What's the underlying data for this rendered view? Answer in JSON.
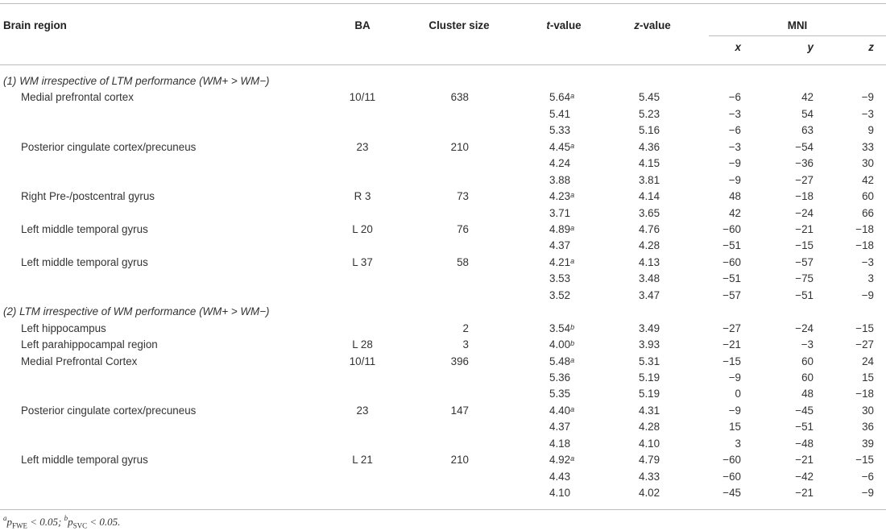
{
  "header": {
    "brain_region": "Brain region",
    "ba": "BA",
    "cluster_size": "Cluster size",
    "t_italic": "t",
    "t_rest": "-value",
    "z_italic": "z",
    "z_rest": "-value",
    "mni": "MNI",
    "x": "x",
    "y": "y",
    "z": "z"
  },
  "sections": [
    {
      "title": "(1) WM irrespective of LTM performance (WM+ > WM−)",
      "rows": [
        {
          "region": "Medial prefrontal cortex",
          "ba": "10/11",
          "cluster": "638",
          "t": "5.64",
          "sup": "a",
          "zv": "5.45",
          "x": "−6",
          "y": "42",
          "z": "−9"
        },
        {
          "region": "",
          "ba": "",
          "cluster": "",
          "t": "5.41",
          "sup": "",
          "zv": "5.23",
          "x": "−3",
          "y": "54",
          "z": "−3"
        },
        {
          "region": "",
          "ba": "",
          "cluster": "",
          "t": "5.33",
          "sup": "",
          "zv": "5.16",
          "x": "−6",
          "y": "63",
          "z": "9"
        },
        {
          "region": "Posterior cingulate cortex/precuneus",
          "ba": "23",
          "cluster": "210",
          "t": "4.45",
          "sup": "a",
          "zv": "4.36",
          "x": "−3",
          "y": "−54",
          "z": "33"
        },
        {
          "region": "",
          "ba": "",
          "cluster": "",
          "t": "4.24",
          "sup": "",
          "zv": "4.15",
          "x": "−9",
          "y": "−36",
          "z": "30"
        },
        {
          "region": "",
          "ba": "",
          "cluster": "",
          "t": "3.88",
          "sup": "",
          "zv": "3.81",
          "x": "−9",
          "y": "−27",
          "z": "42"
        },
        {
          "region": "Right Pre-/postcentral gyrus",
          "ba": "R 3",
          "cluster": "73",
          "t": "4.23",
          "sup": "a",
          "zv": "4.14",
          "x": "48",
          "y": "−18",
          "z": "60"
        },
        {
          "region": "",
          "ba": "",
          "cluster": "",
          "t": "3.71",
          "sup": "",
          "zv": "3.65",
          "x": "42",
          "y": "−24",
          "z": "66"
        },
        {
          "region": "Left middle temporal gyrus",
          "ba": "L 20",
          "cluster": "76",
          "t": "4.89",
          "sup": "a",
          "zv": "4.76",
          "x": "−60",
          "y": "−21",
          "z": "−18"
        },
        {
          "region": "",
          "ba": "",
          "cluster": "",
          "t": "4.37",
          "sup": "",
          "zv": "4.28",
          "x": "−51",
          "y": "−15",
          "z": "−18"
        },
        {
          "region": "Left middle temporal gyrus",
          "ba": "L 37",
          "cluster": "58",
          "t": "4.21",
          "sup": "a",
          "zv": "4.13",
          "x": "−60",
          "y": "−57",
          "z": "−3"
        },
        {
          "region": "",
          "ba": "",
          "cluster": "",
          "t": "3.53",
          "sup": "",
          "zv": "3.48",
          "x": "−51",
          "y": "−75",
          "z": "3"
        },
        {
          "region": "",
          "ba": "",
          "cluster": "",
          "t": "3.52",
          "sup": "",
          "zv": "3.47",
          "x": "−57",
          "y": "−51",
          "z": "−9"
        }
      ]
    },
    {
      "title": "(2) LTM irrespective of WM performance (WM+ > WM−)",
      "rows": [
        {
          "region": "Left hippocampus",
          "ba": "",
          "cluster": "2",
          "t": "3.54",
          "sup": "b",
          "zv": "3.49",
          "x": "−27",
          "y": "−24",
          "z": "−15"
        },
        {
          "region": "Left parahippocampal region",
          "ba": "L 28",
          "cluster": "3",
          "t": "4.00",
          "sup": "b",
          "zv": "3.93",
          "x": "−21",
          "y": "−3",
          "z": "−27"
        },
        {
          "region": "Medial Prefrontal Cortex",
          "ba": "10/11",
          "cluster": "396",
          "t": "5.48",
          "sup": "a",
          "zv": "5.31",
          "x": "−15",
          "y": "60",
          "z": "24"
        },
        {
          "region": "",
          "ba": "",
          "cluster": "",
          "t": "5.36",
          "sup": "",
          "zv": "5.19",
          "x": "−9",
          "y": "60",
          "z": "15"
        },
        {
          "region": "",
          "ba": "",
          "cluster": "",
          "t": "5.35",
          "sup": "",
          "zv": "5.19",
          "x": "0",
          "y": "48",
          "z": "−18"
        },
        {
          "region": "Posterior cingulate cortex/precuneus",
          "ba": "23",
          "cluster": "147",
          "t": "4.40",
          "sup": "a",
          "zv": "4.31",
          "x": "−9",
          "y": "−45",
          "z": "30"
        },
        {
          "region": "",
          "ba": "",
          "cluster": "",
          "t": "4.37",
          "sup": "",
          "zv": "4.28",
          "x": "15",
          "y": "−51",
          "z": "36"
        },
        {
          "region": "",
          "ba": "",
          "cluster": "",
          "t": "4.18",
          "sup": "",
          "zv": "4.10",
          "x": "3",
          "y": "−48",
          "z": "39"
        },
        {
          "region": "Left middle temporal gyrus",
          "ba": "L 21",
          "cluster": "210",
          "t": "4.92",
          "sup": "a",
          "zv": "4.79",
          "x": "−60",
          "y": "−21",
          "z": "−15"
        },
        {
          "region": "",
          "ba": "",
          "cluster": "",
          "t": "4.43",
          "sup": "",
          "zv": "4.33",
          "x": "−60",
          "y": "−42",
          "z": "−6"
        },
        {
          "region": "",
          "ba": "",
          "cluster": "",
          "t": "4.10",
          "sup": "",
          "zv": "4.02",
          "x": "−45",
          "y": "−21",
          "z": "−9"
        }
      ]
    }
  ],
  "footnote": {
    "a_sup": "a",
    "a_p": "p",
    "a_sub": "FWE",
    "a_rest": " < 0.05; ",
    "b_sup": "b",
    "b_p": "p",
    "b_sub": "SVC",
    "b_rest": " < 0.05."
  }
}
